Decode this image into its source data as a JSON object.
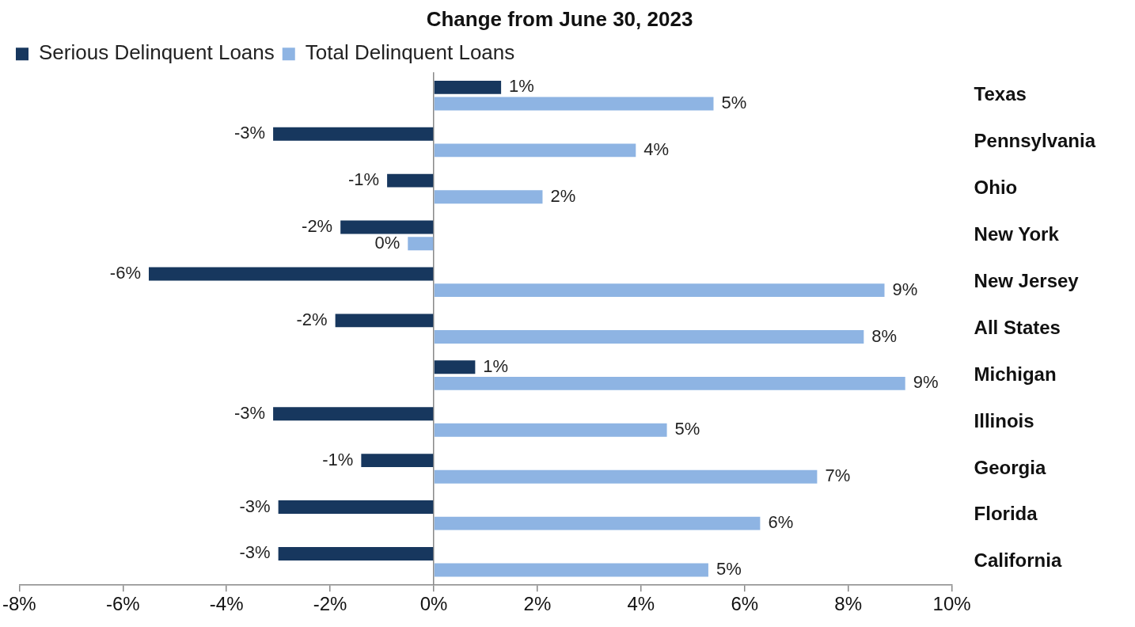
{
  "chart_data": {
    "type": "bar",
    "orientation": "horizontal",
    "title": "Change from June 30, 2023",
    "categories": [
      "Texas",
      "Pennsylvania",
      "Ohio",
      "New York",
      "New Jersey",
      "All States",
      "Michigan",
      "Illinois",
      "Georgia",
      "Florida",
      "California"
    ],
    "series": [
      {
        "name": "Serious Delinquent Loans",
        "color": "#17375e",
        "values": [
          1.3,
          -3.1,
          -0.9,
          -1.8,
          -5.5,
          -1.9,
          0.8,
          -3.1,
          -1.4,
          -3.0,
          -3.0
        ],
        "value_labels": [
          "1%",
          "-3%",
          "-1%",
          "-2%",
          "-6%",
          "-2%",
          "1%",
          "-3%",
          "-1%",
          "-3%",
          "-3%"
        ]
      },
      {
        "name": "Total Delinquent Loans",
        "color": "#8eb4e3",
        "values": [
          5.4,
          3.9,
          2.1,
          -0.5,
          8.7,
          8.3,
          9.1,
          4.5,
          7.4,
          6.3,
          5.3
        ],
        "value_labels": [
          "5%",
          "4%",
          "2%",
          "0%",
          "9%",
          "8%",
          "9%",
          "5%",
          "7%",
          "6%",
          "5%"
        ]
      }
    ],
    "xlim": [
      -8,
      10
    ],
    "xticks": [
      {
        "value": -8,
        "label": "-8%"
      },
      {
        "value": -6,
        "label": "-6%"
      },
      {
        "value": -4,
        "label": "-4%"
      },
      {
        "value": -2,
        "label": "-2%"
      },
      {
        "value": 0,
        "label": "0%"
      },
      {
        "value": 2,
        "label": "2%"
      },
      {
        "value": 4,
        "label": "4%"
      },
      {
        "value": 6,
        "label": "6%"
      },
      {
        "value": 8,
        "label": "8%"
      },
      {
        "value": 10,
        "label": "10%"
      }
    ],
    "legend": "top left"
  }
}
